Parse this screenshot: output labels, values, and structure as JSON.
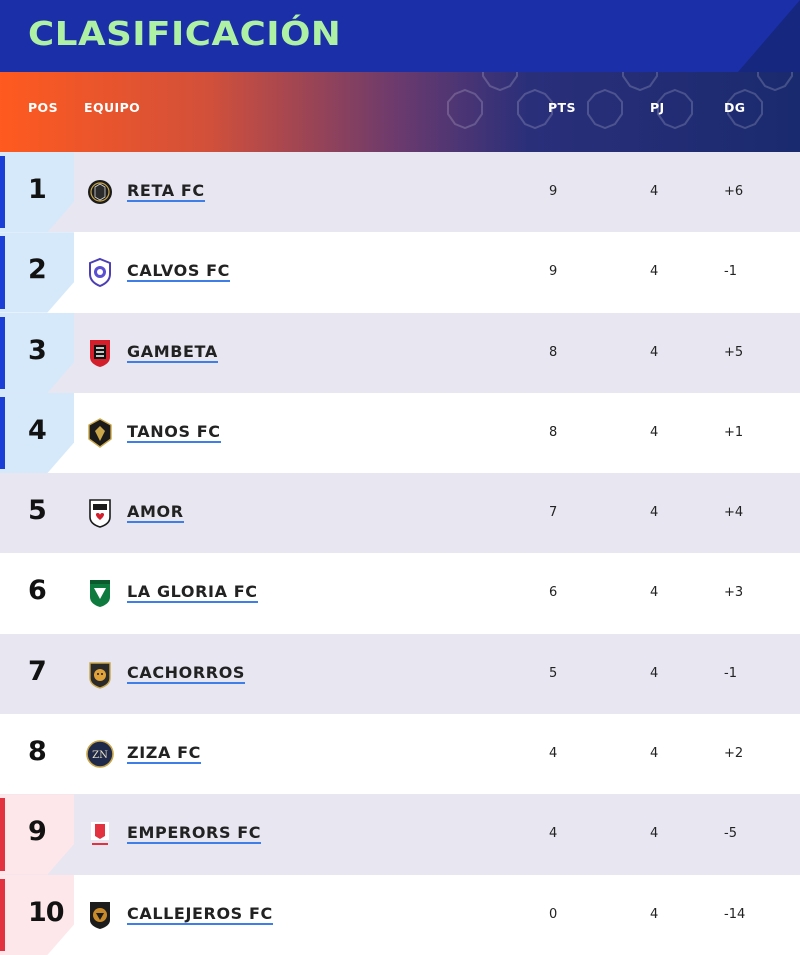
{
  "title": "CLASIFICACIÓN",
  "columns": {
    "pos": "POS",
    "team": "EQUIPO",
    "pts": "PTS",
    "pj": "PJ",
    "dg": "DG"
  },
  "colors": {
    "title_bar": "#1b2fa8",
    "title_text": "#aef0a4",
    "top_zone": "#1b3fd6",
    "bottom_zone": "#e2323f",
    "alt_row": "#e8e6f1",
    "link_underline": "#3e7ee6"
  },
  "rows": [
    {
      "pos": "1",
      "team": "RETA FC",
      "pts": "9",
      "pj": "4",
      "dg": "+6",
      "zone": "top",
      "crest": "reta-fc-crest"
    },
    {
      "pos": "2",
      "team": "CALVOS FC",
      "pts": "9",
      "pj": "4",
      "dg": "-1",
      "zone": "top",
      "crest": "calvos-fc-crest"
    },
    {
      "pos": "3",
      "team": "GAMBETA",
      "pts": "8",
      "pj": "4",
      "dg": "+5",
      "zone": "top",
      "crest": "gambeta-crest"
    },
    {
      "pos": "4",
      "team": "TANOS FC",
      "pts": "8",
      "pj": "4",
      "dg": "+1",
      "zone": "top",
      "crest": "tanos-fc-crest"
    },
    {
      "pos": "5",
      "team": "AMOR",
      "pts": "7",
      "pj": "4",
      "dg": "+4",
      "zone": "none",
      "crest": "amor-crest"
    },
    {
      "pos": "6",
      "team": "LA GLORIA FC",
      "pts": "6",
      "pj": "4",
      "dg": "+3",
      "zone": "none",
      "crest": "la-gloria-fc-crest"
    },
    {
      "pos": "7",
      "team": "CACHORROS",
      "pts": "5",
      "pj": "4",
      "dg": "-1",
      "zone": "none",
      "crest": "cachorros-crest"
    },
    {
      "pos": "8",
      "team": "ZIZA FC",
      "pts": "4",
      "pj": "4",
      "dg": "+2",
      "zone": "none",
      "crest": "ziza-fc-crest"
    },
    {
      "pos": "9",
      "team": "EMPERORS FC",
      "pts": "4",
      "pj": "4",
      "dg": "-5",
      "zone": "bottom",
      "crest": "emperors-fc-crest"
    },
    {
      "pos": "10",
      "team": "CALLEJEROS FC",
      "pts": "0",
      "pj": "4",
      "dg": "-14",
      "zone": "bottom",
      "crest": "callejeros-fc-crest"
    }
  ]
}
